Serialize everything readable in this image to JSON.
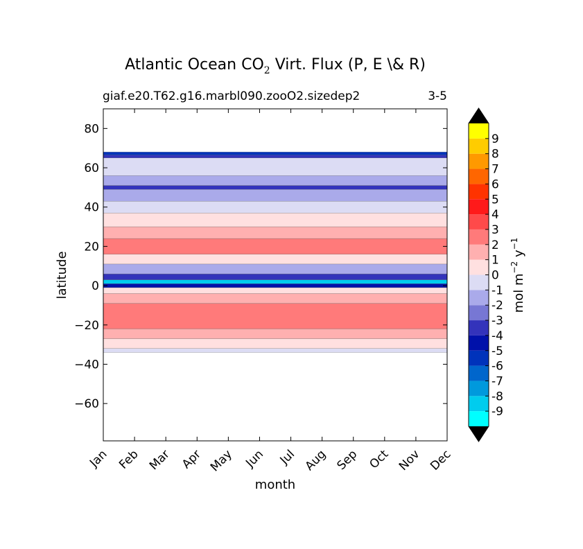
{
  "chart_data": {
    "type": "heatmap",
    "title_main": "Atlantic Ocean CO",
    "title_sub": "2",
    "title_rest": " Virt. Flux (P, E \\& R)",
    "subtitle_left": "giaf.e20.T62.g16.marbl090.zooO2.sizedep2",
    "subtitle_right": "3-5",
    "xlabel": "month",
    "ylabel": "latitude",
    "x_ticks": [
      "Jan",
      "Feb",
      "Mar",
      "Apr",
      "May",
      "Jun",
      "Jul",
      "Aug",
      "Sep",
      "Oct",
      "Nov",
      "Dec"
    ],
    "y_ticks": [
      -60,
      -40,
      -20,
      0,
      20,
      40,
      60,
      80
    ],
    "y_tick_labels": [
      "−60",
      "−40",
      "−20",
      "0",
      "20",
      "40",
      "60",
      "80"
    ],
    "ylim": [
      -79,
      90
    ],
    "xlim": [
      0,
      11
    ],
    "data_lat_range": [
      -34,
      68
    ],
    "colorbar": {
      "label_prefix": "mol m",
      "label_exp1": "−2",
      "label_mid": " y",
      "label_exp2": "−1",
      "levels": [
        "-9",
        "-8",
        "-7",
        "-6",
        "-5",
        "-4",
        "-3",
        "-2",
        "-1",
        "0",
        "1",
        "2",
        "3",
        "4",
        "5",
        "6",
        "7",
        "8",
        "9"
      ],
      "colors": [
        "#00ffff",
        "#00ccee",
        "#0099dd",
        "#0066cc",
        "#0033bb",
        "#0011aa",
        "#3333bb",
        "#7777d4",
        "#aaaaea",
        "#dcdcf4",
        "#ffe0e0",
        "#ffb0b0",
        "#ff7a7a",
        "#ff4a4a",
        "#ff1a1a",
        "#ff3300",
        "#ff6600",
        "#ff9900",
        "#ffcc00",
        "#ffff00"
      ],
      "extend_color": "#000000"
    },
    "bands": [
      {
        "lat": [
          -34,
          -32
        ],
        "value": -0.5
      },
      {
        "lat": [
          -32,
          -27
        ],
        "value": 0.5
      },
      {
        "lat": [
          -27,
          -22
        ],
        "value": 1.5
      },
      {
        "lat": [
          -22,
          -9
        ],
        "value": 2.5
      },
      {
        "lat": [
          -9,
          -4
        ],
        "value": 1.5
      },
      {
        "lat": [
          -4,
          -1
        ],
        "value": 0.5
      },
      {
        "lat": [
          -1,
          1
        ],
        "value": -4.5
      },
      {
        "lat": [
          1,
          3
        ],
        "value": -8.5
      },
      {
        "lat": [
          3,
          6
        ],
        "value": -3.5
      },
      {
        "lat": [
          6,
          11
        ],
        "value": -1.5
      },
      {
        "lat": [
          11,
          16
        ],
        "value": 0.5
      },
      {
        "lat": [
          16,
          24
        ],
        "value": 2.5
      },
      {
        "lat": [
          24,
          30
        ],
        "value": 1.5
      },
      {
        "lat": [
          30,
          37
        ],
        "value": 0.5
      },
      {
        "lat": [
          37,
          43
        ],
        "value": -0.5
      },
      {
        "lat": [
          43,
          49
        ],
        "value": -1.5
      },
      {
        "lat": [
          49,
          51
        ],
        "value": -3.5
      },
      {
        "lat": [
          51,
          56
        ],
        "value": -1.5
      },
      {
        "lat": [
          56,
          65
        ],
        "value": -0.5
      },
      {
        "lat": [
          65,
          66.5
        ],
        "value": -3.5
      },
      {
        "lat": [
          66.5,
          68
        ],
        "value": -5.5
      }
    ],
    "grid": false
  }
}
